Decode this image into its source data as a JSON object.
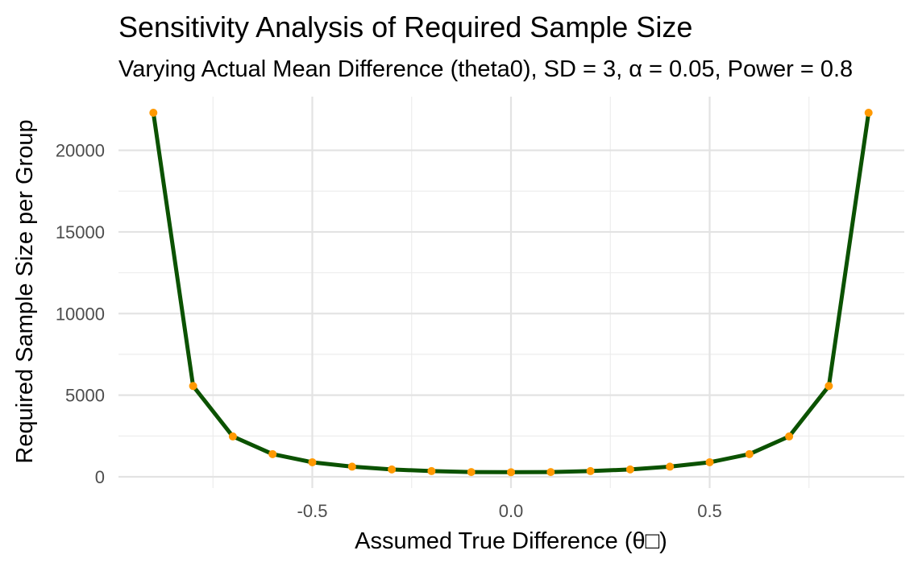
{
  "chart_data": {
    "type": "line",
    "title": "Sensitivity Analysis of Required Sample Size",
    "subtitle": "Varying Actual Mean Difference (theta0), SD = 3, α = 0.05, Power = 0.8",
    "xlabel": "Assumed True Difference (θ□)",
    "ylabel": "Required Sample Size per Group",
    "xlim": [
      -0.9,
      0.9
    ],
    "ylim": [
      0,
      22300
    ],
    "x_ticks": [
      {
        "value": -0.5,
        "label": "-0.5"
      },
      {
        "value": 0.0,
        "label": "0.0"
      },
      {
        "value": 0.5,
        "label": "0.5"
      }
    ],
    "y_ticks": [
      {
        "value": 0,
        "label": "0"
      },
      {
        "value": 5000,
        "label": "5000"
      },
      {
        "value": 10000,
        "label": "10000"
      },
      {
        "value": 15000,
        "label": "15000"
      },
      {
        "value": 20000,
        "label": "20000"
      }
    ],
    "grid": true,
    "line_color": "#0b5200",
    "point_color": "#ff9900",
    "x": [
      -0.9,
      -0.8,
      -0.7,
      -0.6,
      -0.5,
      -0.4,
      -0.3,
      -0.2,
      -0.1,
      0.0,
      0.1,
      0.2,
      0.3,
      0.4,
      0.5,
      0.6,
      0.7,
      0.8,
      0.9
    ],
    "y": [
      22300,
      5560,
      2470,
      1390,
      890,
      620,
      450,
      350,
      290,
      280,
      290,
      350,
      450,
      620,
      890,
      1390,
      2470,
      5560,
      22300
    ]
  }
}
